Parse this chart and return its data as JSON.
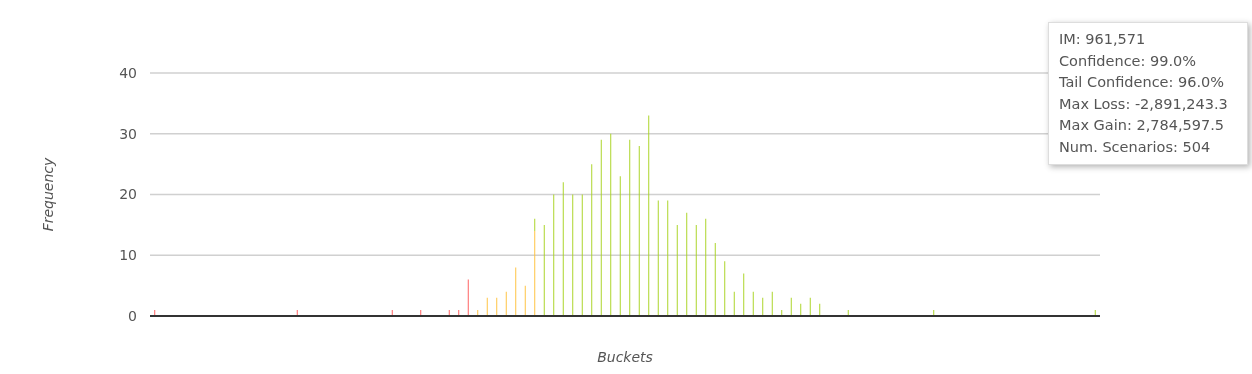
{
  "chart_data": {
    "type": "bar",
    "stacked": true,
    "xlabel": "Buckets",
    "ylabel": "Frequency",
    "categories": [
      null,
      null,
      null,
      null,
      null,
      null,
      null,
      null,
      null,
      null,
      null,
      null,
      null,
      null,
      null,
      null,
      null,
      null,
      null,
      null,
      null,
      null,
      null,
      null,
      null,
      null,
      null,
      null,
      null,
      null,
      null,
      null,
      null,
      null,
      null,
      null,
      null,
      null,
      null,
      null,
      null,
      null,
      null,
      null,
      null,
      null,
      null,
      null,
      null,
      null,
      null,
      null,
      null,
      null,
      null,
      null,
      null,
      null,
      null,
      null,
      null,
      null,
      null,
      null,
      null,
      null,
      null,
      null,
      null,
      null,
      null,
      null,
      null,
      null,
      null,
      null,
      null,
      null,
      null,
      null,
      null,
      null,
      null,
      null,
      null,
      null,
      null,
      null,
      null,
      null,
      null,
      null,
      null,
      null,
      null,
      null,
      null,
      null,
      null,
      null
    ],
    "series": [
      {
        "color": "#ff5a5a",
        "values": [
          1,
          null,
          null,
          null,
          null,
          null,
          null,
          null,
          null,
          null,
          null,
          null,
          null,
          null,
          null,
          1,
          null,
          null,
          null,
          null,
          null,
          null,
          null,
          null,
          null,
          1,
          null,
          null,
          1,
          null,
          null,
          1,
          1,
          6,
          null,
          null,
          null,
          null,
          null,
          null,
          null,
          null,
          null,
          null,
          null,
          null,
          null,
          null,
          null,
          null,
          null,
          null,
          null,
          null,
          null,
          null,
          null,
          null,
          null,
          null,
          null,
          null,
          null,
          null,
          null,
          null,
          null,
          null,
          null,
          null,
          null,
          null,
          null,
          null,
          null,
          null,
          null,
          null,
          null,
          null,
          null,
          null,
          null,
          null,
          null,
          null,
          null,
          null,
          null,
          null,
          null,
          null,
          null,
          null,
          null,
          null,
          null,
          null,
          null,
          null
        ]
      },
      {
        "color": "#ffc13b",
        "values": [
          null,
          null,
          null,
          null,
          null,
          null,
          null,
          null,
          null,
          null,
          null,
          null,
          null,
          null,
          null,
          null,
          null,
          null,
          null,
          null,
          null,
          null,
          null,
          null,
          null,
          null,
          null,
          null,
          null,
          null,
          null,
          null,
          null,
          null,
          1,
          3,
          3,
          4,
          8,
          5,
          14,
          null,
          null,
          null,
          null,
          null,
          null,
          null,
          null,
          null,
          null,
          null,
          null,
          null,
          null,
          null,
          null,
          null,
          null,
          null,
          null,
          null,
          null,
          null,
          null,
          null,
          null,
          null,
          null,
          null,
          null,
          null,
          null,
          null,
          null,
          null,
          null,
          null,
          null,
          null,
          null,
          null,
          null,
          null,
          null,
          null,
          null,
          null,
          null,
          null,
          null,
          null,
          null,
          null,
          null,
          null,
          null,
          null,
          null,
          null
        ]
      },
      {
        "color": "#a8d321",
        "values": [
          null,
          null,
          null,
          null,
          null,
          null,
          null,
          null,
          null,
          null,
          null,
          null,
          null,
          null,
          null,
          null,
          null,
          null,
          null,
          null,
          null,
          null,
          null,
          null,
          null,
          null,
          null,
          null,
          null,
          null,
          null,
          null,
          null,
          null,
          null,
          null,
          null,
          null,
          null,
          null,
          2,
          15,
          20,
          22,
          20,
          20,
          25,
          29,
          30,
          23,
          29,
          28,
          33,
          19,
          19,
          15,
          17,
          15,
          16,
          12,
          9,
          4,
          7,
          4,
          3,
          4,
          1,
          3,
          2,
          3,
          2,
          null,
          null,
          1,
          null,
          null,
          null,
          null,
          null,
          null,
          null,
          null,
          1,
          null,
          null,
          null,
          null,
          null,
          null,
          null,
          null,
          null,
          null,
          null,
          null,
          null,
          null,
          null,
          null,
          1
        ]
      }
    ],
    "ylim": [
      0,
      40
    ],
    "yticks": [
      0,
      10,
      20,
      30,
      40
    ],
    "grid": "y",
    "legend": false,
    "annotations": [
      "IM: 961,571",
      "Confidence: 99.0%",
      "Tail Confidence: 96.0%",
      "Max Loss: -2,891,243.3",
      "Max Gain: 2,784,597.5",
      "Num. Scenarios: 504"
    ]
  }
}
